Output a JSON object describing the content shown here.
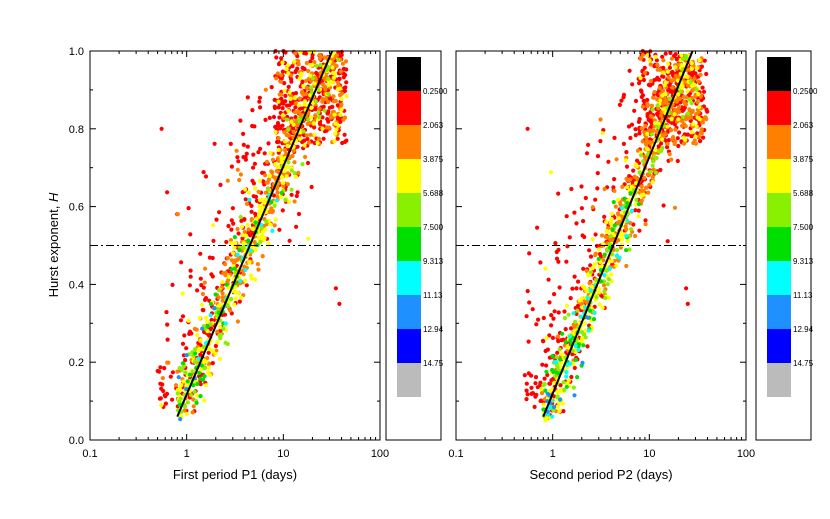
{
  "colors": {
    "black": "#000000",
    "red": "#ff0000",
    "orange": "#ff7f00",
    "yellow": "#ffff00",
    "yellowgreen": "#88f000",
    "green": "#00e000",
    "cyan": "#00ffff",
    "blue1": "#1e90ff",
    "blue2": "#0000ff",
    "gray": "#bbbbbb"
  },
  "colorbar": {
    "labels": [
      "0.2500",
      "2.063",
      "3.875",
      "5.688",
      "7.500",
      "9.313",
      "11.13",
      "12.94",
      "14.75"
    ],
    "bands": [
      "#000000",
      "#ff0000",
      "#ff7f00",
      "#ffff00",
      "#88f000",
      "#00e000",
      "#00ffff",
      "#1e90ff",
      "#0000ff",
      "#bbbbbb"
    ]
  },
  "chart_data": [
    {
      "type": "scatter",
      "xlabel": "First period P1 (days)",
      "ylabel": "Hurst exponent, H",
      "ylabel_main": "Hurst exponent, ",
      "ylabel_var": "H",
      "xscale": "log",
      "xlim": [
        0.1,
        100
      ],
      "ylim": [
        0.0,
        1.0
      ],
      "xticks": [
        0.1,
        1,
        10,
        100
      ],
      "xtick_labels": [
        "0.1",
        "1",
        "10",
        "100"
      ],
      "yticks": [
        0.0,
        0.2,
        0.4,
        0.6,
        0.8,
        1.0
      ],
      "ytick_labels": [
        "0.0",
        "0.2",
        "0.4",
        "0.6",
        "0.8",
        "1.0"
      ],
      "reference_line": {
        "y": 0.5,
        "style": "dash-dot"
      },
      "fit_line": {
        "x": [
          0.8,
          32
        ],
        "y": [
          0.06,
          1.0
        ]
      },
      "point_cloud": {
        "count": 1500,
        "seed": 11,
        "dense_band": {
          "x": [
            0.8,
            40
          ],
          "y": [
            0.06,
            0.98
          ],
          "spread": 0.05
        },
        "sparse_region": {
          "x": [
            0.5,
            45
          ],
          "y": [
            0.08,
            1.0
          ]
        },
        "outliers": [
          {
            "x": 0.55,
            "y": 0.8
          },
          {
            "x": 38,
            "y": 0.35
          },
          {
            "x": 35,
            "y": 0.39
          }
        ]
      }
    },
    {
      "type": "scatter",
      "xlabel": "Second period P2 (days)",
      "ylabel": "",
      "xscale": "log",
      "xlim": [
        0.1,
        100
      ],
      "ylim": [
        0.0,
        1.0
      ],
      "xticks": [
        0.1,
        1,
        10,
        100
      ],
      "xtick_labels": [
        "0.1",
        "1",
        "10",
        "100"
      ],
      "yticks": [
        0.0,
        0.2,
        0.4,
        0.6,
        0.8,
        1.0
      ],
      "reference_line": {
        "y": 0.5,
        "style": "dash-dot"
      },
      "fit_line": {
        "x": [
          0.8,
          28
        ],
        "y": [
          0.06,
          1.0
        ]
      },
      "point_cloud": {
        "count": 1500,
        "seed": 23,
        "dense_band": {
          "x": [
            0.8,
            35
          ],
          "y": [
            0.06,
            0.98
          ],
          "spread": 0.05
        },
        "sparse_region": {
          "x": [
            0.5,
            40
          ],
          "y": [
            0.08,
            1.0
          ]
        },
        "outliers": [
          {
            "x": 0.55,
            "y": 0.8
          },
          {
            "x": 25,
            "y": 0.35
          },
          {
            "x": 24,
            "y": 0.39
          }
        ]
      }
    }
  ]
}
